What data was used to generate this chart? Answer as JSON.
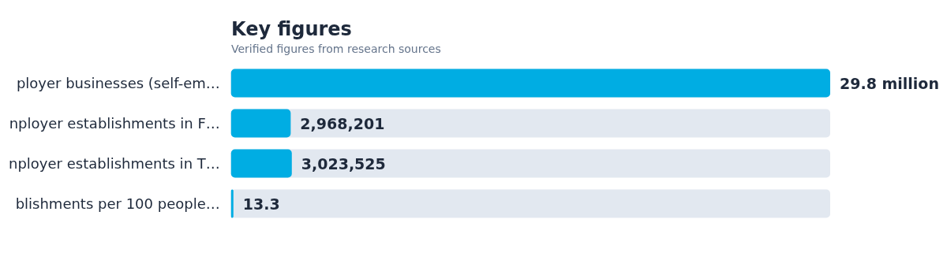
{
  "chart_data": {
    "type": "bar",
    "orientation": "horizontal",
    "title": "Key figures",
    "subtitle": "Verified figures from research sources",
    "categories": [
      "ployer businesses (self-em…",
      "nployer establishments in F…",
      "nployer establishments in T…",
      "blishments per 100 people…"
    ],
    "values": [
      29800000,
      2968201,
      3023525,
      13.3
    ],
    "value_labels": [
      "29.8 million",
      "2,968,201",
      "3,023,525",
      "13.3"
    ],
    "color": "#00ade3"
  }
}
